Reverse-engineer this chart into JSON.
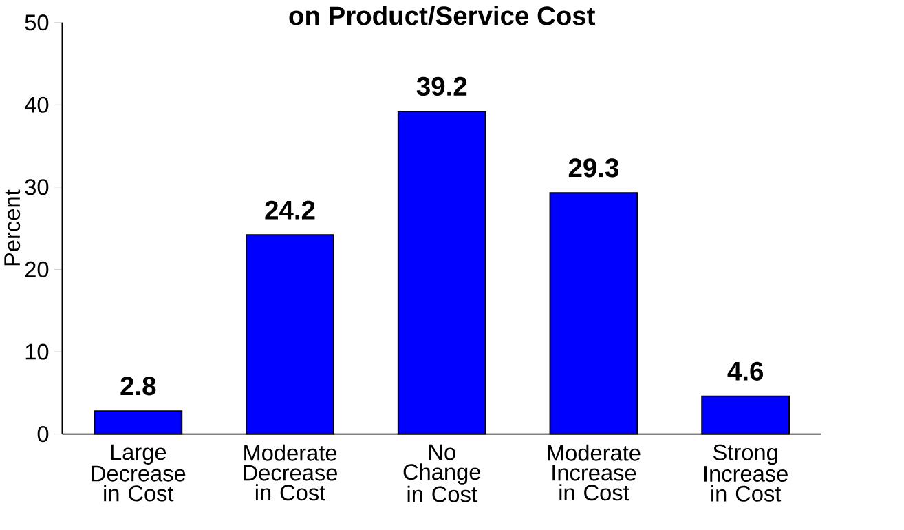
{
  "chart_data": {
    "type": "bar",
    "title": "on Product/Service Cost",
    "ylabel": "Percent",
    "categories": [
      "Large Decrease in Cost",
      "Moderate Decrease in Cost",
      "No Change in Cost",
      "Moderate Increase in Cost",
      "Strong Increase in Cost"
    ],
    "values": [
      2.8,
      24.2,
      39.2,
      29.3,
      4.6
    ],
    "color": "#0000ff",
    "ylim": [
      0,
      50
    ],
    "yticks": [
      0,
      10,
      20,
      30,
      40,
      50
    ],
    "data_labels": true,
    "grid": false
  }
}
